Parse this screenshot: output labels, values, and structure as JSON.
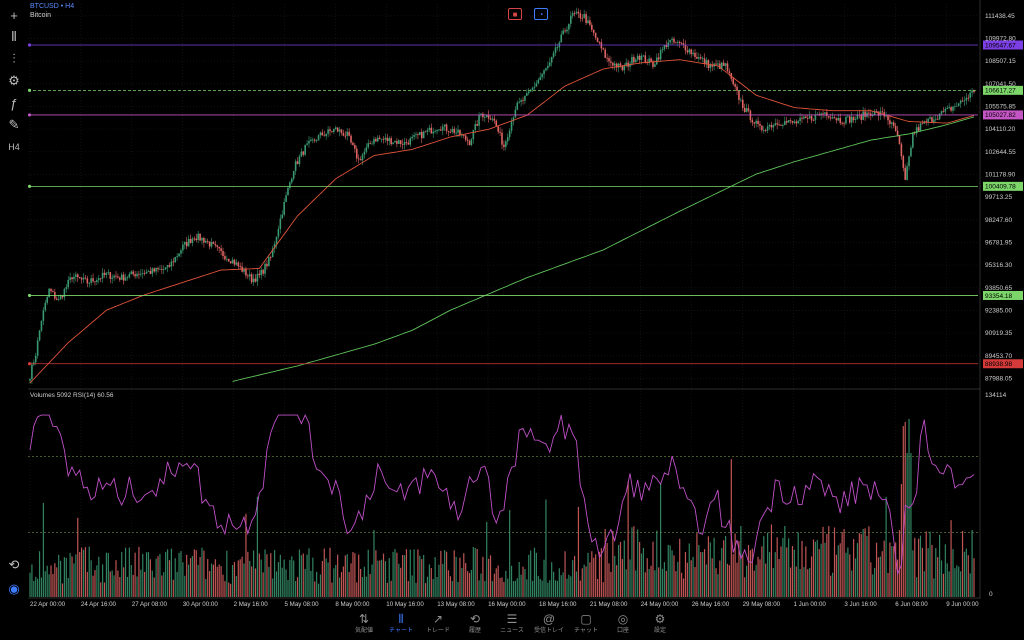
{
  "header": {
    "symbol": "BTCUSD",
    "separator": "•",
    "timeframe": "H4",
    "description": "Bitcoin"
  },
  "left_toolbar": [
    {
      "name": "crosshair-icon",
      "glyph": "+"
    },
    {
      "name": "candlestick-type-icon",
      "glyph": "⫴"
    },
    {
      "name": "indicators-icon",
      "glyph": "⫶"
    },
    {
      "name": "objects-icon",
      "glyph": "⚙"
    },
    {
      "name": "function-icon",
      "glyph": "ƒ"
    },
    {
      "name": "drawings-icon",
      "glyph": "✎"
    },
    {
      "name": "timeframe-label",
      "glyph": "H4"
    }
  ],
  "left_bottom_icons": [
    {
      "name": "history-icon",
      "glyph": "⟲"
    },
    {
      "name": "connection-icon",
      "glyph": "◉"
    }
  ],
  "top_icons": [
    {
      "name": "flag-icon",
      "color": "#d64545"
    },
    {
      "name": "clock-icon",
      "color": "#3d7bff"
    }
  ],
  "chart_data": {
    "type": "candlestick",
    "symbol": "BTCUSD",
    "timeframe": "H4",
    "price_axis_ticks": [
      "111438.45",
      "109972.80",
      "108507.15",
      "107041.50",
      "105575.85",
      "104110.20",
      "102644.55",
      "101178.90",
      "99713.25",
      "98247.60",
      "96781.95",
      "95316.30",
      "93850.65",
      "92385.00",
      "90919.35",
      "89453.70",
      "87988.05"
    ],
    "price_range": [
      87500,
      112200
    ],
    "horizontal_lines": [
      {
        "price": 109547.67,
        "label": "109547.67",
        "color": "#7b3fe4",
        "style": "solid"
      },
      {
        "price": 106617.27,
        "label": "106617.27",
        "color": "#7cd66a",
        "style": "dashed"
      },
      {
        "price": 105027.82,
        "label": "105027.82",
        "color": "#c455c4",
        "style": "solid"
      },
      {
        "price": 100409.78,
        "label": "100409.78",
        "color": "#7cd66a",
        "style": "solid"
      },
      {
        "price": 93354.18,
        "label": "93354.18",
        "color": "#7cd66a",
        "style": "solid"
      },
      {
        "price": 88938.98,
        "label": "88938.98",
        "color": "#d43a3a",
        "style": "solid"
      }
    ],
    "price_anchors": [
      [
        0,
        88200
      ],
      [
        3,
        89600
      ],
      [
        6,
        91800
      ],
      [
        10,
        93700
      ],
      [
        15,
        93000
      ],
      [
        22,
        94600
      ],
      [
        30,
        94200
      ],
      [
        40,
        94700
      ],
      [
        48,
        94500
      ],
      [
        56,
        94800
      ],
      [
        64,
        94900
      ],
      [
        72,
        95100
      ],
      [
        80,
        96500
      ],
      [
        86,
        97200
      ],
      [
        92,
        96900
      ],
      [
        100,
        96100
      ],
      [
        106,
        95600
      ],
      [
        112,
        94900
      ],
      [
        116,
        94400
      ],
      [
        120,
        94600
      ],
      [
        126,
        95800
      ],
      [
        132,
        98800
      ],
      [
        138,
        101600
      ],
      [
        144,
        102900
      ],
      [
        152,
        103700
      ],
      [
        160,
        104100
      ],
      [
        166,
        103700
      ],
      [
        172,
        102100
      ],
      [
        180,
        103500
      ],
      [
        188,
        103400
      ],
      [
        196,
        103200
      ],
      [
        204,
        103700
      ],
      [
        214,
        104300
      ],
      [
        222,
        104000
      ],
      [
        230,
        103300
      ],
      [
        236,
        105100
      ],
      [
        242,
        104900
      ],
      [
        248,
        103000
      ],
      [
        254,
        105500
      ],
      [
        260,
        106200
      ],
      [
        266,
        107300
      ],
      [
        272,
        108300
      ],
      [
        278,
        110000
      ],
      [
        284,
        111500
      ],
      [
        290,
        111400
      ],
      [
        296,
        110000
      ],
      [
        302,
        108600
      ],
      [
        310,
        108000
      ],
      [
        318,
        108900
      ],
      [
        326,
        108300
      ],
      [
        334,
        109800
      ],
      [
        342,
        109500
      ],
      [
        350,
        108700
      ],
      [
        356,
        108200
      ],
      [
        364,
        108200
      ],
      [
        368,
        106900
      ],
      [
        374,
        105400
      ],
      [
        382,
        104100
      ],
      [
        392,
        104600
      ],
      [
        400,
        104500
      ],
      [
        408,
        104800
      ],
      [
        416,
        105200
      ],
      [
        424,
        104700
      ],
      [
        432,
        104800
      ],
      [
        440,
        105200
      ],
      [
        448,
        105000
      ],
      [
        454,
        103700
      ],
      [
        458,
        100700
      ],
      [
        462,
        103800
      ],
      [
        466,
        104300
      ],
      [
        472,
        104800
      ],
      [
        480,
        105300
      ],
      [
        488,
        105900
      ],
      [
        494,
        106600
      ]
    ],
    "ema_fast_anchors": [
      [
        0,
        87700
      ],
      [
        20,
        90300
      ],
      [
        40,
        92400
      ],
      [
        60,
        93400
      ],
      [
        80,
        94200
      ],
      [
        100,
        95000
      ],
      [
        120,
        95100
      ],
      [
        140,
        98500
      ],
      [
        160,
        100900
      ],
      [
        180,
        102400
      ],
      [
        200,
        102800
      ],
      [
        220,
        103600
      ],
      [
        240,
        104100
      ],
      [
        260,
        105000
      ],
      [
        280,
        106900
      ],
      [
        300,
        108000
      ],
      [
        320,
        108400
      ],
      [
        340,
        108600
      ],
      [
        360,
        108200
      ],
      [
        380,
        106300
      ],
      [
        400,
        105500
      ],
      [
        420,
        105300
      ],
      [
        440,
        105300
      ],
      [
        460,
        104600
      ],
      [
        480,
        104500
      ],
      [
        494,
        105000
      ]
    ],
    "sma_slow_anchors": [
      [
        106,
        87800
      ],
      [
        140,
        88800
      ],
      [
        180,
        90200
      ],
      [
        200,
        91100
      ],
      [
        220,
        92400
      ],
      [
        260,
        94500
      ],
      [
        300,
        96300
      ],
      [
        340,
        98800
      ],
      [
        360,
        100000
      ],
      [
        380,
        101200
      ],
      [
        400,
        102000
      ],
      [
        420,
        102700
      ],
      [
        440,
        103400
      ],
      [
        460,
        103800
      ],
      [
        480,
        104400
      ],
      [
        494,
        104900
      ]
    ],
    "x_axis_labels": [
      "22 Apr 00:00",
      "24 Apr 16:00",
      "27 Apr 08:00",
      "30 Apr 00:00",
      "2 May 16:00",
      "5 May 08:00",
      "8 May 00:00",
      "10 May 16:00",
      "13 May 08:00",
      "16 May 00:00",
      "18 May 16:00",
      "21 May 08:00",
      "24 May 00:00",
      "26 May 16:00",
      "29 May 08:00",
      "1 Jun 00:00",
      "3 Jun 16:00",
      "6 Jun 08:00",
      "9 Jun 00:00"
    ],
    "indicator_label": "Volumes 5092 RSI(14) 60.56",
    "indicator_axis_top": "134114",
    "indicator_axis_bottom": "0",
    "rsi_last": 60.56,
    "volume_last": 5092,
    "volume_max": 134114,
    "rsi_levels": [
      70,
      30
    ],
    "colors": {
      "bull": "#3a9a72",
      "bear": "#e06464",
      "ema": "#e0533a",
      "sma": "#5fc35a",
      "rsi": "#c050c8",
      "axis_text": "#cfcfcf",
      "grid": "#1c1c1c"
    }
  },
  "bottom_tabs": [
    {
      "name": "tab-quotes",
      "icon": "⇅",
      "label": "気配値",
      "active": false
    },
    {
      "name": "tab-chart",
      "icon": "⫴",
      "label": "チャート",
      "active": true
    },
    {
      "name": "tab-trade",
      "icon": "↗",
      "label": "トレード",
      "active": false
    },
    {
      "name": "tab-history",
      "icon": "⟲",
      "label": "履歴",
      "active": false
    },
    {
      "name": "tab-news",
      "icon": "☰",
      "label": "ニュース",
      "active": false
    },
    {
      "name": "tab-mailbox",
      "icon": "@",
      "label": "受信トレイ",
      "active": false
    },
    {
      "name": "tab-chat",
      "icon": "▢",
      "label": "チャット",
      "active": false
    },
    {
      "name": "tab-account",
      "icon": "◎",
      "label": "口座",
      "active": false
    },
    {
      "name": "tab-settings",
      "icon": "⚙",
      "label": "設定",
      "active": false
    }
  ]
}
